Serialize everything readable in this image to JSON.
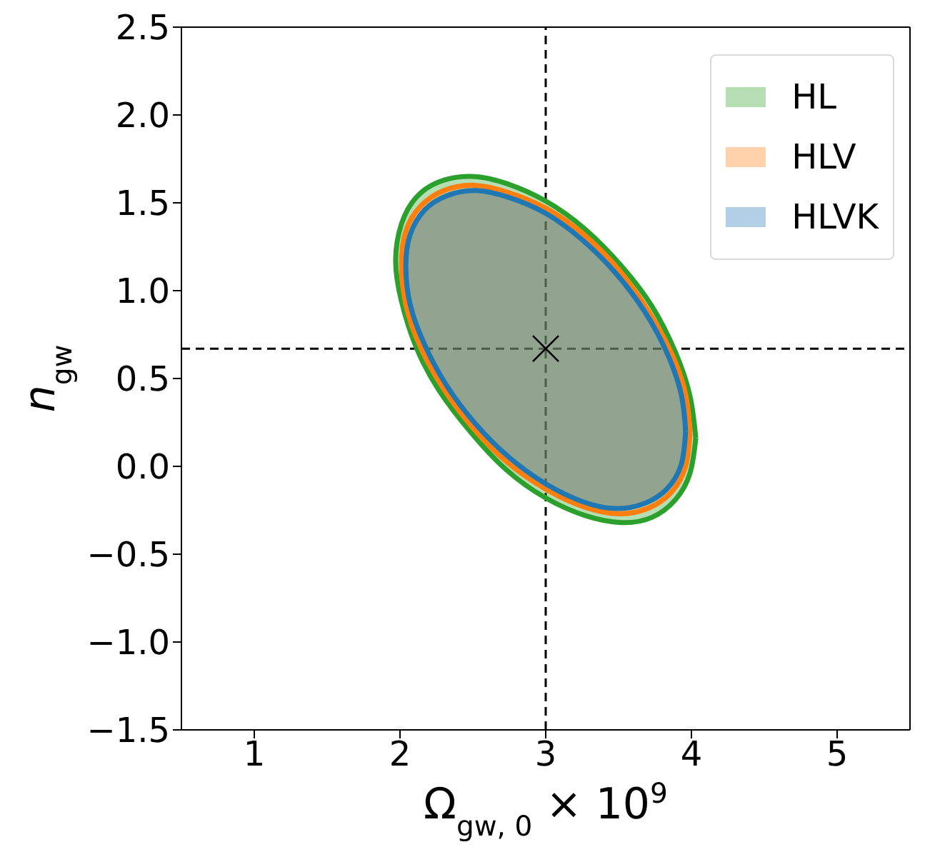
{
  "chart_data": {
    "type": "area",
    "xlabel": "Ω$_{gw, 0}$ × 10$^{9}$",
    "ylabel": "n$_{gw}$",
    "xlim": [
      0.5,
      5.5
    ],
    "xticks": [
      1,
      2,
      3,
      4,
      5
    ],
    "ylim": [
      -1.5,
      2.5
    ],
    "yticks": [
      {
        "value": -1.5,
        "label": "−1.5"
      },
      {
        "value": -1.0,
        "label": "−1.0"
      },
      {
        "value": -0.5,
        "label": "−0.5"
      },
      {
        "value": 0,
        "label": "0.0"
      },
      {
        "value": 0.5,
        "label": "0.5"
      },
      {
        "value": 1.0,
        "label": "1.0"
      },
      {
        "value": 1.5,
        "label": "1.5"
      },
      {
        "value": 2.0,
        "label": "2.0"
      },
      {
        "value": 2.5,
        "label": "2.5"
      }
    ],
    "legend": "top right",
    "ref_lines": [
      {
        "axis": "x",
        "value": 3,
        "color": "#000000",
        "line_style": "dashed"
      },
      {
        "axis": "y",
        "value": 0.67,
        "color": "#000000",
        "line_style": "dashed"
      }
    ],
    "series": [
      {
        "name": "HL",
        "color": "#2ca02c",
        "x": [
          4.03,
          3.99,
          3.89,
          3.73,
          3.52,
          3.27,
          3.0,
          2.73,
          2.49,
          2.27,
          2.11,
          2.01,
          1.97,
          2.01,
          2.11,
          2.27,
          2.49,
          2.73,
          3.0,
          3.27,
          3.52,
          3.73,
          3.89,
          3.99,
          4.03
        ],
        "values": [
          0.16,
          0.4,
          0.65,
          0.91,
          1.14,
          1.35,
          1.51,
          1.61,
          1.65,
          1.62,
          1.53,
          1.38,
          1.17,
          0.94,
          0.68,
          0.43,
          0.19,
          -0.02,
          -0.18,
          -0.28,
          -0.32,
          -0.29,
          -0.19,
          -0.04,
          0.16
        ]
      },
      {
        "name": "HLV",
        "color": "#ff7f0e",
        "x": [
          3.99,
          3.96,
          3.86,
          3.7,
          3.5,
          3.26,
          3.0,
          2.74,
          2.51,
          2.3,
          2.14,
          2.04,
          2.01,
          2.04,
          2.14,
          2.3,
          2.51,
          2.74,
          3.0,
          3.26,
          3.5,
          3.7,
          3.86,
          3.96,
          3.99
        ],
        "values": [
          0.19,
          0.41,
          0.65,
          0.89,
          1.12,
          1.32,
          1.47,
          1.56,
          1.6,
          1.57,
          1.48,
          1.34,
          1.15,
          0.92,
          0.68,
          0.44,
          0.21,
          0.02,
          -0.13,
          -0.23,
          -0.27,
          -0.24,
          -0.15,
          0.0,
          0.19
        ]
      },
      {
        "name": "HLVK",
        "color": "#1f77b4",
        "x": [
          3.96,
          3.93,
          3.83,
          3.68,
          3.48,
          3.25,
          3.0,
          2.75,
          2.52,
          2.32,
          2.17,
          2.07,
          2.04,
          2.07,
          2.17,
          2.32,
          2.52,
          2.75,
          3.0,
          3.25,
          3.48,
          3.68,
          3.83,
          3.93,
          3.96
        ],
        "values": [
          0.2,
          0.41,
          0.65,
          0.88,
          1.1,
          1.29,
          1.44,
          1.53,
          1.57,
          1.54,
          1.46,
          1.32,
          1.14,
          0.92,
          0.69,
          0.46,
          0.24,
          0.05,
          -0.1,
          -0.2,
          -0.24,
          -0.21,
          -0.13,
          0.01,
          0.2
        ]
      },
      {
        "type": "scatter",
        "color": "#000000",
        "marker": "cross",
        "x": [
          3
        ],
        "values": [
          0.67
        ]
      }
    ]
  }
}
